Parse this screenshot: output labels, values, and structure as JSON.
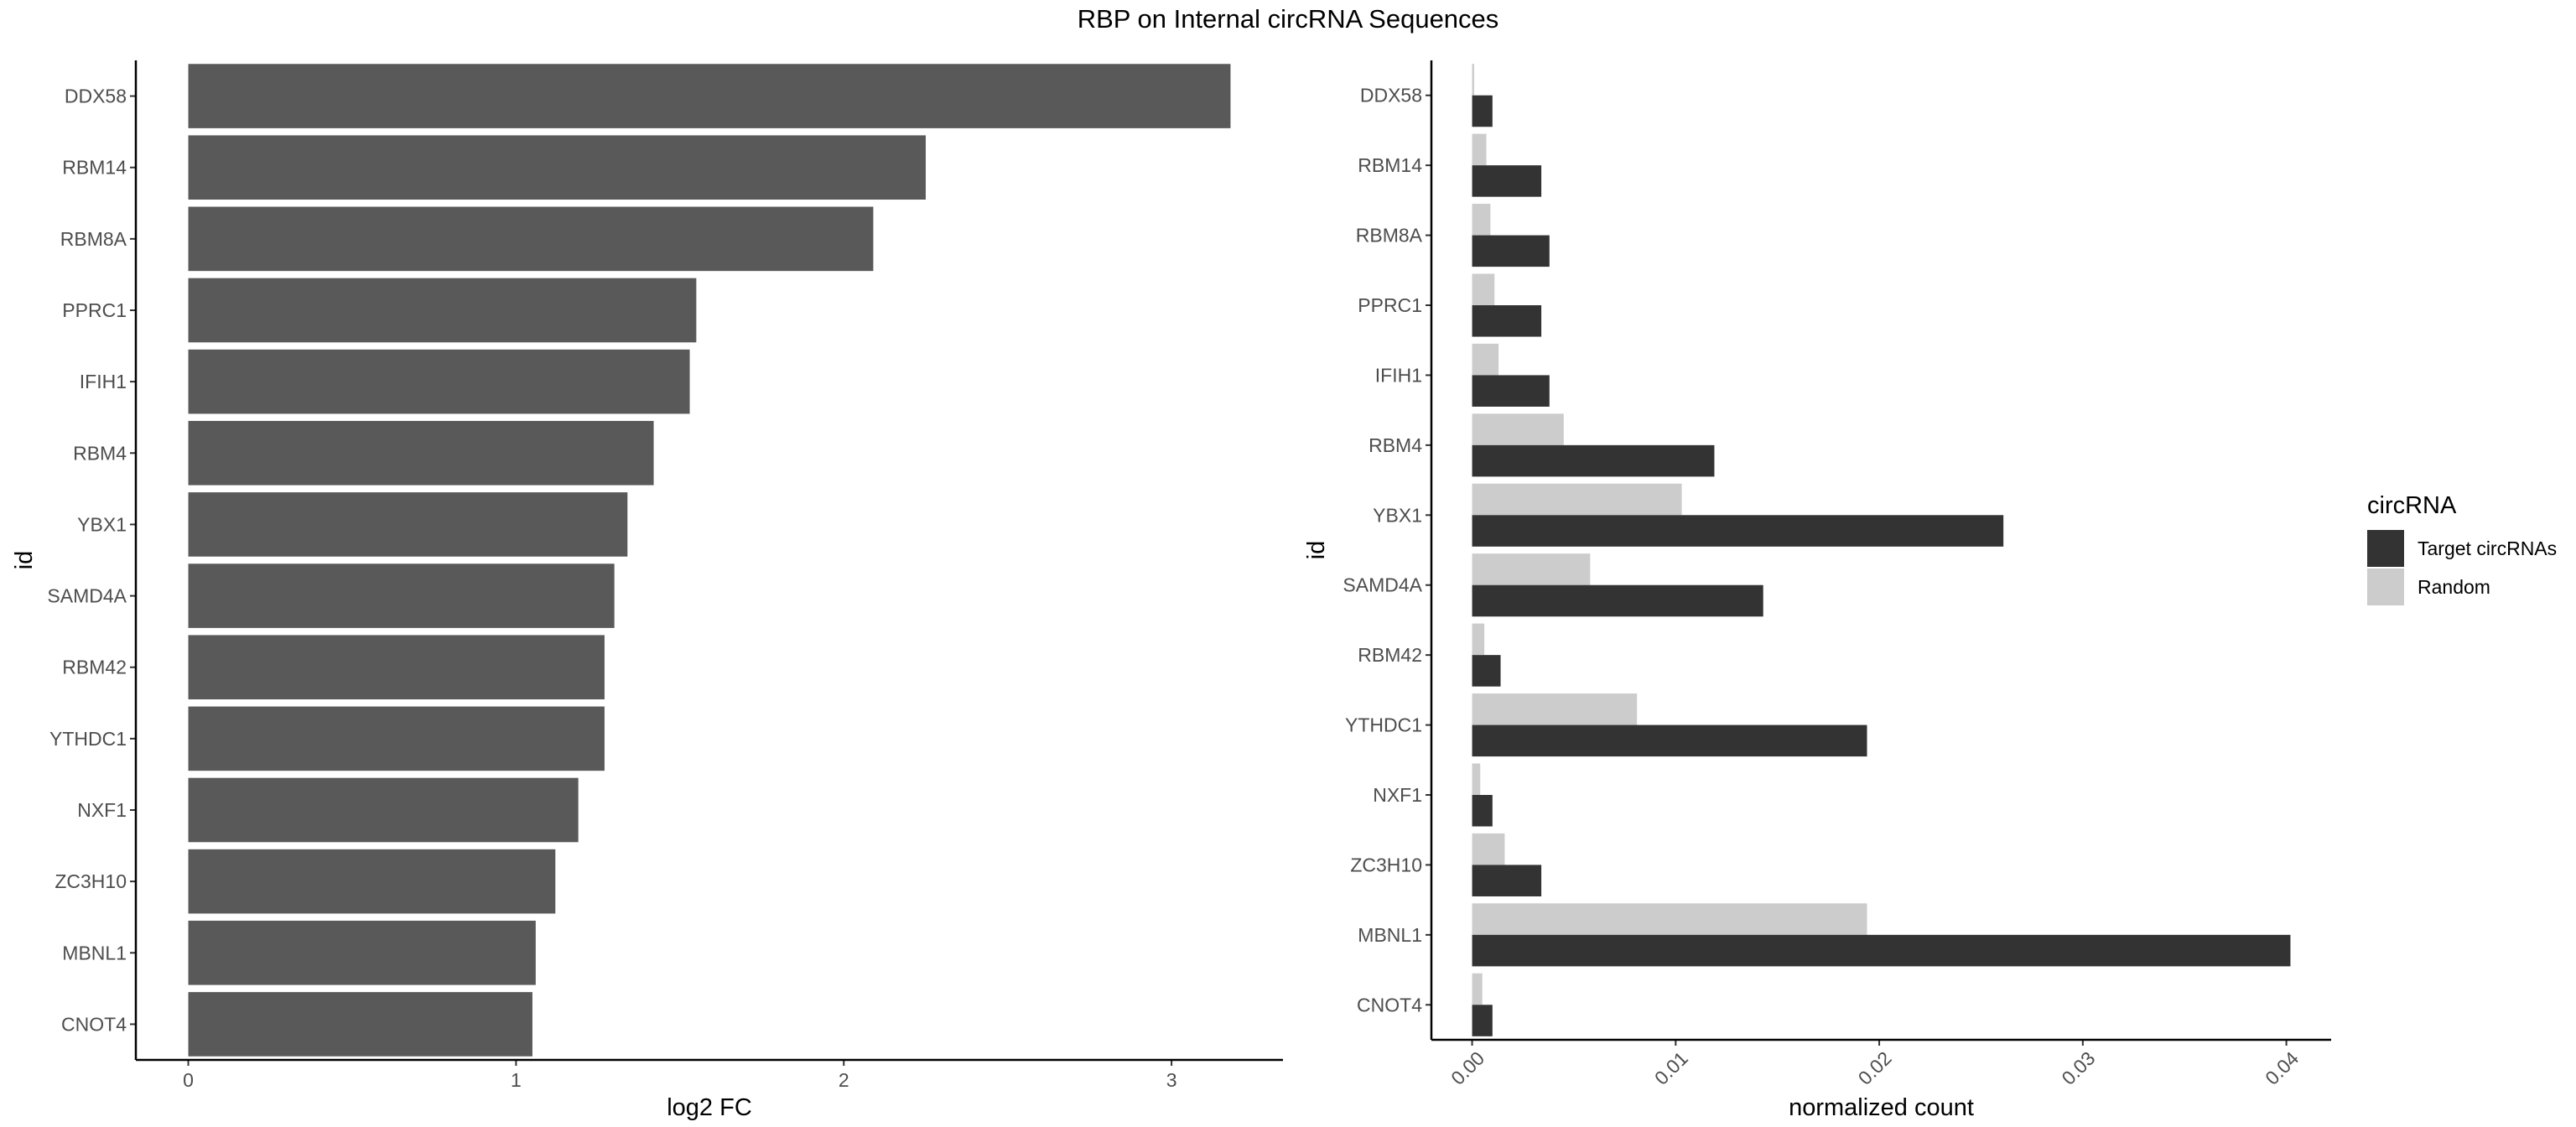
{
  "title": "RBP on Internal circRNA Sequences",
  "chart_data": [
    {
      "type": "bar",
      "orientation": "horizontal",
      "categories": [
        "DDX58",
        "RBM14",
        "RBM8A",
        "PPRC1",
        "IFIH1",
        "RBM4",
        "YBX1",
        "SAMD4A",
        "RBM42",
        "YTHDC1",
        "NXF1",
        "ZC3H10",
        "MBNL1",
        "CNOT4"
      ],
      "values": [
        3.18,
        2.25,
        2.09,
        1.55,
        1.53,
        1.42,
        1.34,
        1.3,
        1.27,
        1.27,
        1.19,
        1.12,
        1.06,
        1.05
      ],
      "xlabel": "log2 FC",
      "ylabel": "id",
      "xlim": [
        -0.16,
        3.34
      ],
      "xticks": [
        "0",
        "1",
        "2",
        "3"
      ],
      "bar_color": "#595959",
      "grid": false
    },
    {
      "type": "bar",
      "orientation": "horizontal",
      "grouped": true,
      "categories": [
        "DDX58",
        "RBM14",
        "RBM8A",
        "PPRC1",
        "IFIH1",
        "RBM4",
        "YBX1",
        "SAMD4A",
        "RBM42",
        "YTHDC1",
        "NXF1",
        "ZC3H10",
        "MBNL1",
        "CNOT4"
      ],
      "series": [
        {
          "name": "Target circRNAs",
          "color": "#333333",
          "values": [
            0.001,
            0.0034,
            0.0038,
            0.0034,
            0.0038,
            0.0119,
            0.0261,
            0.0143,
            0.0014,
            0.0194,
            0.001,
            0.0034,
            0.0402,
            0.001
          ]
        },
        {
          "name": "Random",
          "color": "#cccccc",
          "values": [
            0.0001,
            0.0007,
            0.0009,
            0.0011,
            0.0013,
            0.0045,
            0.0103,
            0.0058,
            0.0006,
            0.0081,
            0.0004,
            0.0016,
            0.0194,
            0.0005
          ]
        }
      ],
      "xlabel": "normalized count",
      "ylabel": "id",
      "xlim": [
        -0.002,
        0.0422
      ],
      "xticks": [
        "0.00",
        "0.01",
        "0.02",
        "0.03",
        "0.04"
      ],
      "legend": {
        "title": "circRNA",
        "placement": "right"
      },
      "grid": false
    }
  ]
}
